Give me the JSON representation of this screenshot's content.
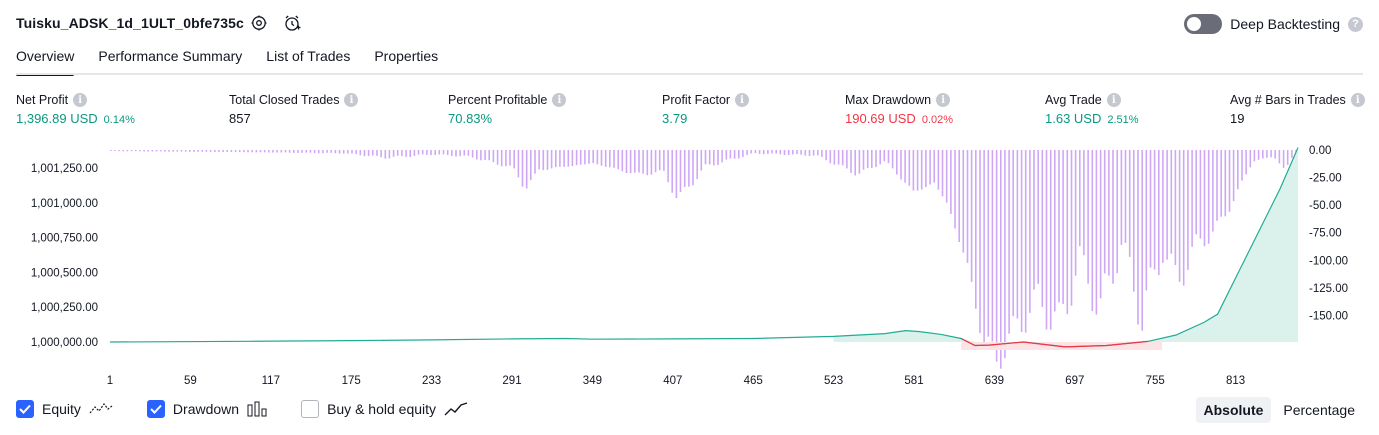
{
  "header": {
    "strategy_title": "Tuisku_ADSK_1d_1ULT_0bfe735c",
    "deep_backtesting_label": "Deep Backtesting",
    "deep_backtesting_on": false
  },
  "tabs": [
    {
      "label": "Overview",
      "active": true
    },
    {
      "label": "Performance Summary",
      "active": false
    },
    {
      "label": "List of Trades",
      "active": false
    },
    {
      "label": "Properties",
      "active": false
    }
  ],
  "metrics": {
    "net_profit": {
      "label": "Net Profit",
      "value": "1,396.89 USD",
      "pct": "0.14%"
    },
    "closed_trades": {
      "label": "Total Closed Trades",
      "value": "857"
    },
    "percent_profitable": {
      "label": "Percent Profitable",
      "value": "70.83%"
    },
    "profit_factor": {
      "label": "Profit Factor",
      "value": "3.79"
    },
    "max_drawdown": {
      "label": "Max Drawdown",
      "value": "190.69 USD",
      "pct": "0.02%"
    },
    "avg_trade": {
      "label": "Avg Trade",
      "value": "1.63 USD",
      "pct": "2.51%"
    },
    "avg_bars": {
      "label": "Avg # Bars in Trades",
      "value": "19"
    }
  },
  "colors": {
    "positive": "#089981",
    "negative": "#f23645",
    "equity_line": "#22ab94",
    "equity_fill": "#d4efe9",
    "drawdown_bar": "#cfa8f5",
    "checkbox": "#2962ff"
  },
  "chart_data": {
    "type": "line",
    "left_axis_ticks": [
      "1,001,250.00",
      "1,001,000.00",
      "1,000,750.00",
      "1,000,500.00",
      "1,000,250.00",
      "1,000,000.00"
    ],
    "right_axis_ticks": [
      "0.00",
      "-25.00",
      "-50.00",
      "-75.00",
      "-100.00",
      "-125.00",
      "-150.00"
    ],
    "x_ticks": [
      "1",
      "59",
      "117",
      "175",
      "233",
      "291",
      "349",
      "407",
      "465",
      "523",
      "581",
      "639",
      "697",
      "755",
      "813"
    ],
    "ylim_equity": [
      1000000,
      1001400
    ],
    "ylim_drawdown": [
      -190.69,
      0
    ],
    "xlim": [
      1,
      858
    ],
    "series": [
      {
        "name": "Equity",
        "points": [
          [
            1,
            1000000
          ],
          [
            100,
            1000005
          ],
          [
            175,
            1000010
          ],
          [
            233,
            1000015
          ],
          [
            291,
            1000022
          ],
          [
            330,
            1000025
          ],
          [
            349,
            1000020
          ],
          [
            407,
            1000022
          ],
          [
            465,
            1000025
          ],
          [
            523,
            1000040
          ],
          [
            560,
            1000060
          ],
          [
            575,
            1000082
          ],
          [
            585,
            1000075
          ],
          [
            600,
            1000055
          ],
          [
            615,
            1000025
          ],
          [
            625,
            999975
          ],
          [
            635,
            999978
          ],
          [
            660,
            1000000
          ],
          [
            690,
            999965
          ],
          [
            720,
            999975
          ],
          [
            750,
            1000005
          ],
          [
            770,
            1000050
          ],
          [
            790,
            1000140
          ],
          [
            800,
            1000200
          ],
          [
            815,
            1000500
          ],
          [
            830,
            1000800
          ],
          [
            845,
            1001100
          ],
          [
            858,
            1001396.89
          ]
        ]
      },
      {
        "name": "Drawdown",
        "points": [
          [
            1,
            -1
          ],
          [
            100,
            -2
          ],
          [
            170,
            -3
          ],
          [
            200,
            -7
          ],
          [
            233,
            -4
          ],
          [
            260,
            -6
          ],
          [
            291,
            -16
          ],
          [
            300,
            -35
          ],
          [
            310,
            -18
          ],
          [
            349,
            -12
          ],
          [
            380,
            -22
          ],
          [
            400,
            -20
          ],
          [
            410,
            -45
          ],
          [
            430,
            -15
          ],
          [
            465,
            -3
          ],
          [
            510,
            -5
          ],
          [
            540,
            -22
          ],
          [
            560,
            -10
          ],
          [
            580,
            -38
          ],
          [
            595,
            -30
          ],
          [
            605,
            -50
          ],
          [
            620,
            -110
          ],
          [
            630,
            -170
          ],
          [
            640,
            -190.69
          ],
          [
            655,
            -160
          ],
          [
            670,
            -135
          ],
          [
            685,
            -160
          ],
          [
            700,
            -100
          ],
          [
            715,
            -145
          ],
          [
            730,
            -85
          ],
          [
            745,
            -150
          ],
          [
            760,
            -90
          ],
          [
            770,
            -120
          ],
          [
            785,
            -85
          ],
          [
            800,
            -70
          ],
          [
            815,
            -35
          ],
          [
            825,
            -10
          ],
          [
            840,
            -6
          ],
          [
            848,
            -18
          ],
          [
            855,
            -3
          ],
          [
            858,
            0
          ]
        ]
      }
    ]
  },
  "legend": {
    "equity": {
      "label": "Equity",
      "checked": true
    },
    "drawdown": {
      "label": "Drawdown",
      "checked": true
    },
    "buy_hold": {
      "label": "Buy & hold equity",
      "checked": false
    }
  },
  "mode_toggle": {
    "absolute": "Absolute",
    "percentage": "Percentage",
    "selected": "absolute"
  }
}
